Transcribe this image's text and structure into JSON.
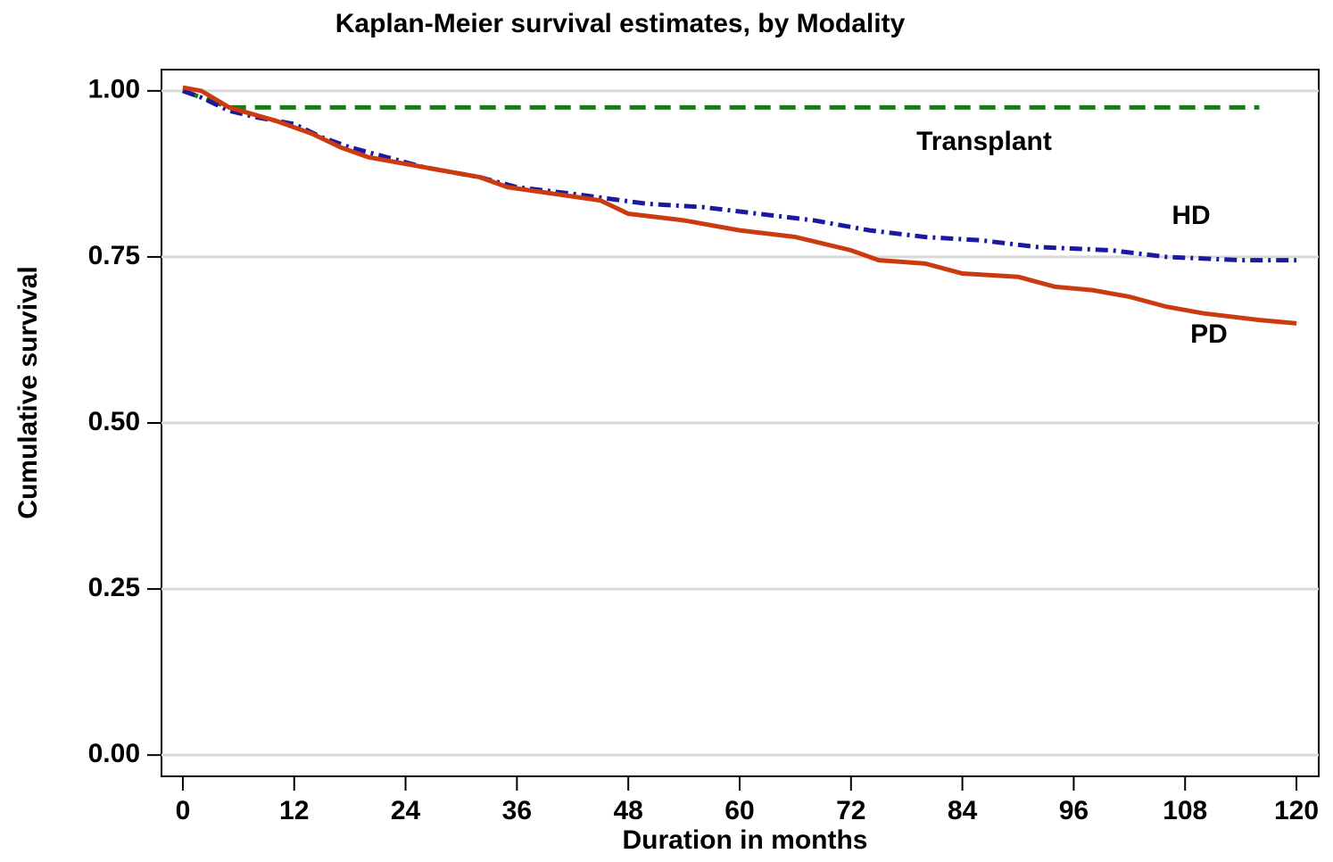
{
  "chart_data": {
    "type": "line",
    "title": "Kaplan-Meier survival estimates, by Modality",
    "xlabel": "Duration in months",
    "ylabel": "Cumulative survival",
    "xlim": [
      -2.3,
      122.4
    ],
    "ylim": [
      -0.032,
      1.032
    ],
    "xticks": [
      0,
      12,
      24,
      36,
      48,
      60,
      72,
      84,
      96,
      108,
      120
    ],
    "yticks": [
      {
        "value": 0,
        "label": "0.00"
      },
      {
        "value": 0.25,
        "label": "0.25"
      },
      {
        "value": 0.5,
        "label": "0.50"
      },
      {
        "value": 0.75,
        "label": "0.75"
      },
      {
        "value": 1,
        "label": "1.00"
      }
    ],
    "grid": true,
    "series": [
      {
        "name": "Transplant",
        "color": "#1a7a1a",
        "x": [
          0,
          5,
          116
        ],
        "values": [
          1.0,
          0.975,
          0.975
        ]
      },
      {
        "name": "HD",
        "color": "#1a1aa0",
        "x": [
          0,
          2,
          5,
          8,
          12,
          15,
          18,
          22,
          26,
          32,
          36,
          42,
          50,
          56,
          62,
          68,
          74,
          80,
          86,
          92,
          100,
          106,
          114,
          120
        ],
        "values": [
          1.0,
          0.99,
          0.97,
          0.96,
          0.95,
          0.93,
          0.915,
          0.9,
          0.885,
          0.87,
          0.855,
          0.845,
          0.83,
          0.825,
          0.815,
          0.805,
          0.79,
          0.78,
          0.775,
          0.765,
          0.76,
          0.75,
          0.745,
          0.745
        ]
      },
      {
        "name": "PD",
        "color": "#cc3a10",
        "x": [
          0,
          2,
          5,
          10,
          14,
          17,
          20,
          24,
          28,
          32,
          35,
          40,
          45,
          48,
          54,
          60,
          66,
          72,
          75,
          80,
          84,
          90,
          94,
          98,
          102,
          106,
          110,
          116,
          120
        ],
        "values": [
          1.005,
          1.0,
          0.975,
          0.955,
          0.935,
          0.915,
          0.9,
          0.89,
          0.88,
          0.87,
          0.855,
          0.845,
          0.835,
          0.815,
          0.805,
          0.79,
          0.78,
          0.76,
          0.745,
          0.74,
          0.725,
          0.72,
          0.705,
          0.7,
          0.69,
          0.675,
          0.665,
          0.655,
          0.65
        ]
      }
    ]
  }
}
